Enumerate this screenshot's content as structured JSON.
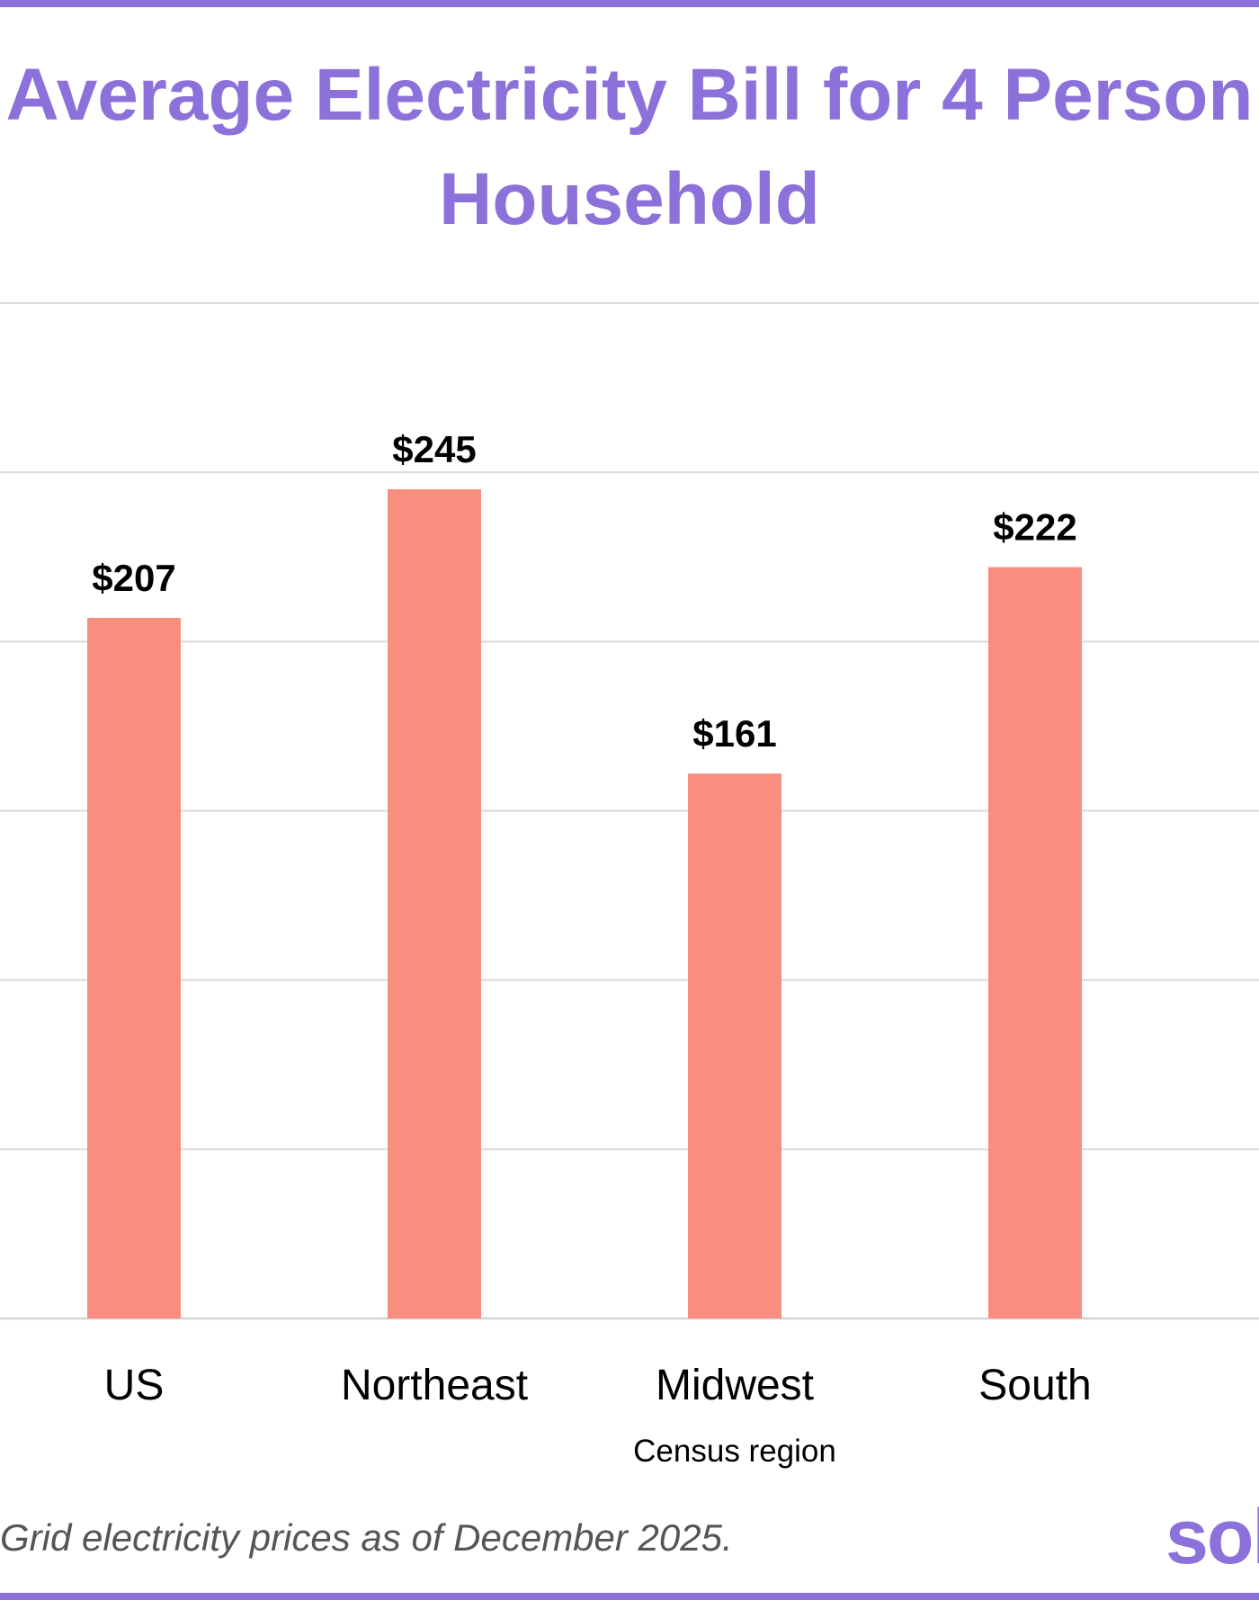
{
  "chart_data": {
    "type": "bar",
    "title_line1": "Average Electricity Bill for 4 Person",
    "title_line2": "Household",
    "categories": [
      "US",
      "Northeast",
      "Midwest",
      "South"
    ],
    "values": [
      207,
      245,
      161,
      222
    ],
    "data_labels": [
      "$207",
      "$245",
      "$161",
      "$222"
    ],
    "xlabel": "Census region",
    "ylabel": "",
    "ylim": [
      0,
      300
    ],
    "grid": true,
    "legend": "none",
    "bar_color": "#f88e7f"
  },
  "footnote": "Grid electricity prices as of December 2025.",
  "logo": {
    "text": "sol"
  },
  "colors": {
    "accent": "#8c71da",
    "bar": "#f88e7f",
    "grid": "#d9d9d9"
  }
}
